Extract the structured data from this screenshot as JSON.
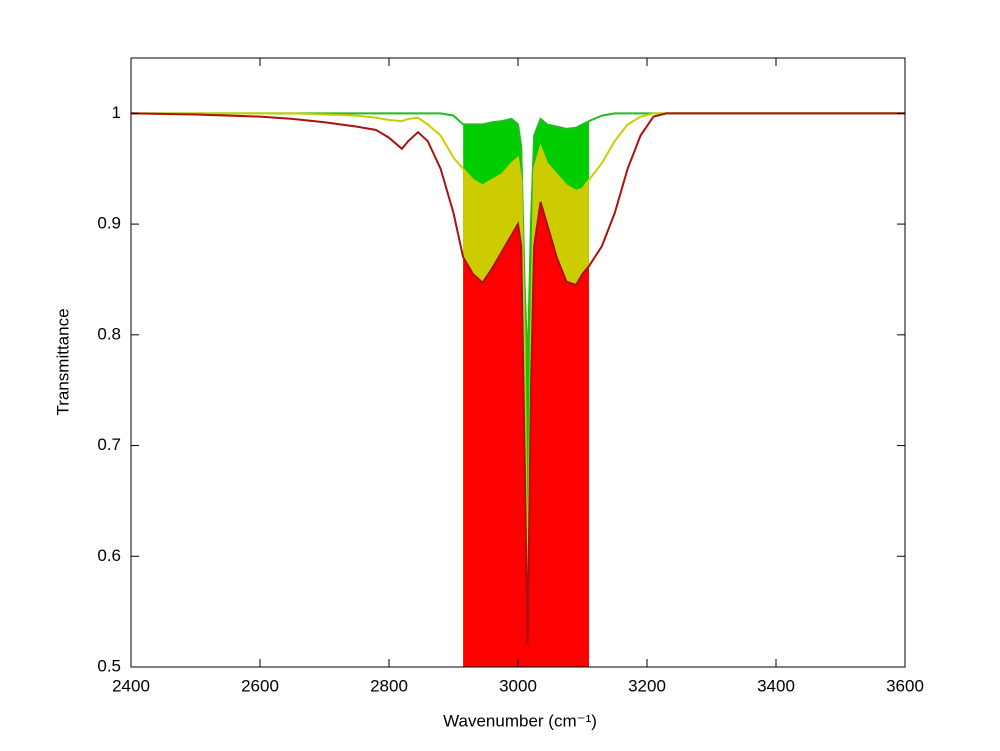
{
  "chart_data": {
    "type": "line",
    "xlabel": "Wavenumber (cm⁻¹)",
    "ylabel": "Transmittance",
    "x": [
      2400,
      2500,
      2600,
      2650,
      2700,
      2750,
      2780,
      2800,
      2820,
      2830,
      2845,
      2860,
      2880,
      2900,
      2915,
      2930,
      2945,
      2960,
      2975,
      2990,
      3000,
      3005,
      3010,
      3015,
      3020,
      3025,
      3035,
      3045,
      3060,
      3075,
      3090,
      3100,
      3110,
      3130,
      3150,
      3170,
      3190,
      3210,
      3230,
      3300,
      3600
    ],
    "series": [
      {
        "color": "#22bb22",
        "fill_color": "#00cc00",
        "values": [
          1,
          1,
          1,
          1,
          1,
          1,
          1,
          1,
          1,
          1,
          1,
          1,
          1,
          0.998,
          0.99,
          0.99,
          0.99,
          0.992,
          0.993,
          0.995,
          0.99,
          0.97,
          0.85,
          0.77,
          0.9,
          0.98,
          0.995,
          0.99,
          0.988,
          0.986,
          0.987,
          0.99,
          0.993,
          0.998,
          1,
          1,
          1,
          1,
          1,
          1,
          1
        ]
      },
      {
        "color": "#cccc00",
        "fill_color": "#cccc00",
        "values": [
          1,
          1,
          1,
          1,
          0.999,
          0.998,
          0.996,
          0.994,
          0.993,
          0.995,
          0.996,
          0.99,
          0.98,
          0.96,
          0.95,
          0.94,
          0.935,
          0.94,
          0.945,
          0.955,
          0.96,
          0.94,
          0.8,
          0.56,
          0.8,
          0.95,
          0.97,
          0.955,
          0.945,
          0.935,
          0.93,
          0.932,
          0.94,
          0.955,
          0.975,
          0.99,
          0.997,
          1,
          1,
          1,
          1
        ]
      },
      {
        "color": "#aa1111",
        "fill_color": "#ff0000",
        "values": [
          1,
          0.999,
          0.997,
          0.995,
          0.992,
          0.988,
          0.985,
          0.978,
          0.968,
          0.975,
          0.983,
          0.975,
          0.95,
          0.91,
          0.87,
          0.855,
          0.847,
          0.86,
          0.875,
          0.89,
          0.9,
          0.88,
          0.7,
          0.52,
          0.75,
          0.88,
          0.92,
          0.9,
          0.87,
          0.848,
          0.845,
          0.855,
          0.862,
          0.88,
          0.91,
          0.95,
          0.98,
          0.997,
          1,
          1,
          1
        ]
      }
    ],
    "fill_xrange": [
      2915,
      3110
    ],
    "xlim": [
      2400,
      3600
    ],
    "xticks": [
      2400,
      2600,
      2800,
      3000,
      3200,
      3400,
      3600
    ],
    "ylim": [
      0.5,
      1.05
    ],
    "yticks": [
      0.5,
      0.6,
      0.7,
      0.8,
      0.9,
      1
    ]
  }
}
